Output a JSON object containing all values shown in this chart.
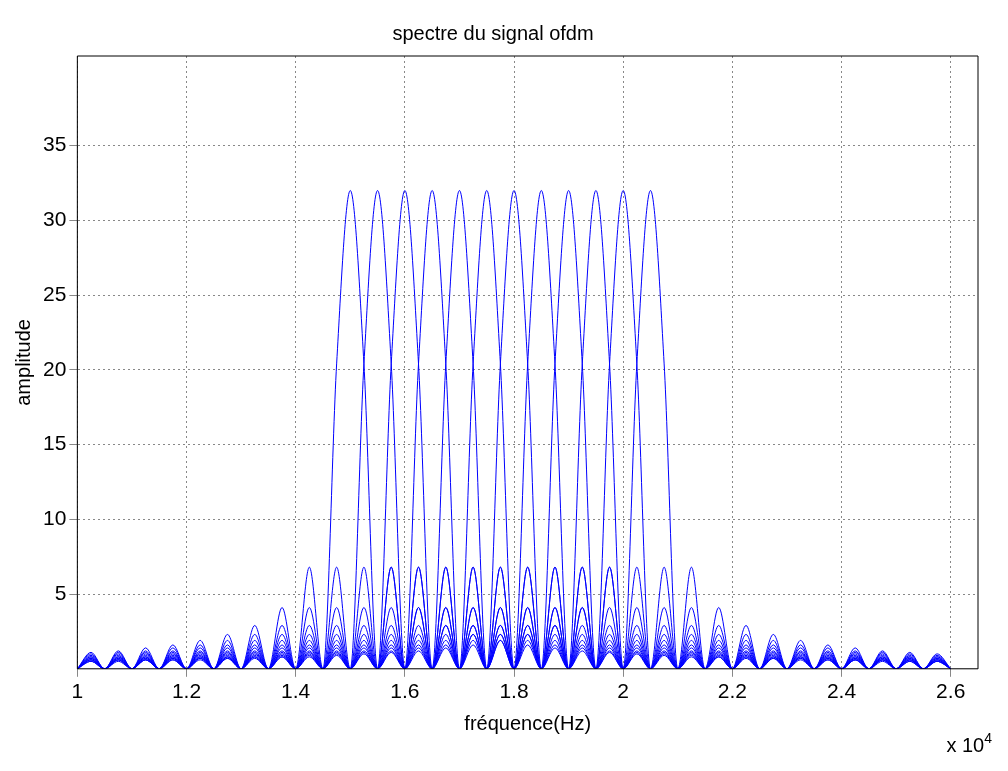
{
  "chart_data": {
    "type": "line",
    "title": "spectre du signal ofdm",
    "xlabel": "fréquence(Hz)",
    "ylabel": "amplitude",
    "annotations": [
      "x 10$^{4}$"
    ],
    "x": [
      1,
      1.025,
      1.05,
      1.075,
      1.1,
      1.125,
      1.15,
      1.175,
      1.2,
      1.225,
      1.25,
      1.275,
      1.3,
      1.325,
      1.35,
      1.375,
      1.4,
      1.425,
      1.45,
      1.475,
      1.5,
      1.525,
      1.55,
      1.575,
      1.6,
      1.625,
      1.65,
      1.675,
      1.7,
      1.725,
      1.75,
      1.775,
      1.8,
      1.825,
      1.85,
      1.875,
      1.9,
      1.925,
      1.95,
      1.975,
      2,
      2.025,
      2.05,
      2.075,
      2.1,
      2.125,
      2.15,
      2.175,
      2.2,
      2.225,
      2.25,
      2.275,
      2.3,
      2.325,
      2.35,
      2.375,
      2.4,
      2.425,
      2.45,
      2.475,
      2.5,
      2.525,
      2.55,
      2.575,
      2.6
    ],
    "xlim": [
      1,
      2.65
    ],
    "xticks": [
      1,
      1.2,
      1.4,
      1.6,
      1.8,
      2,
      2.2,
      2.4,
      2.6
    ],
    "ylim": [
      0,
      41
    ],
    "yticks": [
      5,
      10,
      15,
      20,
      25,
      30,
      35
    ],
    "grid": true,
    "series": [
      {
        "color": "#0000ff",
        "values": [
          0,
          1.1,
          0,
          1.2,
          0,
          1.4,
          0,
          1.6,
          0,
          1.9,
          0,
          2.3,
          0,
          2.9,
          0,
          4.1,
          0,
          6.8,
          0,
          20.4,
          32,
          20.4,
          0,
          6.8,
          0,
          4.1,
          0,
          2.9,
          0,
          2.3,
          0,
          1.9,
          0,
          1.6,
          0,
          1.4,
          0,
          1.2,
          0,
          1.1,
          0,
          1.0,
          0,
          0.9,
          0,
          0.8,
          0,
          0.8,
          0,
          0.7,
          0,
          0.7,
          0,
          0.6,
          0,
          0.6,
          0,
          0.6,
          0,
          0.5,
          0,
          0.5,
          0,
          0.5,
          0
        ]
      },
      {
        "color": "#0000ff",
        "values": [
          0,
          1.0,
          0,
          1.1,
          0,
          1.2,
          0,
          1.4,
          0,
          1.6,
          0,
          1.9,
          0,
          2.3,
          0,
          2.9,
          0,
          4.1,
          0,
          6.8,
          0,
          20.4,
          32,
          20.4,
          0,
          6.8,
          0,
          4.1,
          0,
          2.9,
          0,
          2.3,
          0,
          1.9,
          0,
          1.6,
          0,
          1.4,
          0,
          1.2,
          0,
          1.1,
          0,
          1.0,
          0,
          0.9,
          0,
          0.8,
          0,
          0.8,
          0,
          0.7,
          0,
          0.7,
          0,
          0.6,
          0,
          0.6,
          0,
          0.6,
          0,
          0.5,
          0,
          0.5,
          0
        ]
      },
      {
        "color": "#0000ff",
        "values": [
          0,
          0.9,
          0,
          1.0,
          0,
          1.1,
          0,
          1.2,
          0,
          1.4,
          0,
          1.6,
          0,
          1.9,
          0,
          2.3,
          0,
          2.9,
          0,
          4.1,
          0,
          6.8,
          0,
          20.4,
          32,
          20.4,
          0,
          6.8,
          0,
          4.1,
          0,
          2.9,
          0,
          2.3,
          0,
          1.9,
          0,
          1.6,
          0,
          1.4,
          0,
          1.2,
          0,
          1.1,
          0,
          1.0,
          0,
          0.9,
          0,
          0.8,
          0,
          0.8,
          0,
          0.7,
          0,
          0.7,
          0,
          0.6,
          0,
          0.6,
          0,
          0.6,
          0,
          0.5,
          0
        ]
      },
      {
        "color": "#0000ff",
        "values": [
          0,
          0.8,
          0,
          0.9,
          0,
          1.0,
          0,
          1.1,
          0,
          1.2,
          0,
          1.4,
          0,
          1.6,
          0,
          1.9,
          0,
          2.3,
          0,
          2.9,
          0,
          4.1,
          0,
          6.8,
          0,
          20.4,
          32,
          20.4,
          0,
          6.8,
          0,
          4.1,
          0,
          2.9,
          0,
          2.3,
          0,
          1.9,
          0,
          1.6,
          0,
          1.4,
          0,
          1.2,
          0,
          1.1,
          0,
          1.0,
          0,
          0.9,
          0,
          0.8,
          0,
          0.8,
          0,
          0.7,
          0,
          0.7,
          0,
          0.6,
          0,
          0.6,
          0,
          0.6,
          0
        ]
      },
      {
        "color": "#0000ff",
        "values": [
          0,
          0.8,
          0,
          0.8,
          0,
          0.9,
          0,
          1.0,
          0,
          1.1,
          0,
          1.2,
          0,
          1.4,
          0,
          1.6,
          0,
          1.9,
          0,
          2.3,
          0,
          2.9,
          0,
          4.1,
          0,
          6.8,
          0,
          20.4,
          32,
          20.4,
          0,
          6.8,
          0,
          4.1,
          0,
          2.9,
          0,
          2.3,
          0,
          1.9,
          0,
          1.6,
          0,
          1.4,
          0,
          1.2,
          0,
          1.1,
          0,
          1.0,
          0,
          0.9,
          0,
          0.8,
          0,
          0.8,
          0,
          0.7,
          0,
          0.7,
          0,
          0.6,
          0,
          0.6,
          0
        ]
      },
      {
        "color": "#0000ff",
        "values": [
          0,
          0.7,
          0,
          0.8,
          0,
          0.8,
          0,
          0.9,
          0,
          1.0,
          0,
          1.1,
          0,
          1.2,
          0,
          1.4,
          0,
          1.6,
          0,
          1.9,
          0,
          2.3,
          0,
          2.9,
          0,
          4.1,
          0,
          6.8,
          0,
          20.4,
          32,
          20.4,
          0,
          6.8,
          0,
          4.1,
          0,
          2.9,
          0,
          2.3,
          0,
          1.9,
          0,
          1.6,
          0,
          1.4,
          0,
          1.2,
          0,
          1.1,
          0,
          1.0,
          0,
          0.9,
          0,
          0.8,
          0,
          0.8,
          0,
          0.7,
          0,
          0.7,
          0,
          0.6,
          0
        ]
      },
      {
        "color": "#0000ff",
        "values": [
          0,
          0.7,
          0,
          0.7,
          0,
          0.8,
          0,
          0.8,
          0,
          0.9,
          0,
          1.0,
          0,
          1.1,
          0,
          1.2,
          0,
          1.4,
          0,
          1.6,
          0,
          1.9,
          0,
          2.3,
          0,
          2.9,
          0,
          4.1,
          0,
          6.8,
          0,
          20.4,
          32,
          20.4,
          0,
          6.8,
          0,
          4.1,
          0,
          2.9,
          0,
          2.3,
          0,
          1.9,
          0,
          1.6,
          0,
          1.4,
          0,
          1.2,
          0,
          1.1,
          0,
          1.0,
          0,
          0.9,
          0,
          0.8,
          0,
          0.8,
          0,
          0.7,
          0,
          0.7,
          0
        ]
      },
      {
        "color": "#0000ff",
        "values": [
          0,
          0.6,
          0,
          0.7,
          0,
          0.7,
          0,
          0.8,
          0,
          0.8,
          0,
          0.9,
          0,
          1.0,
          0,
          1.1,
          0,
          1.2,
          0,
          1.4,
          0,
          1.6,
          0,
          1.9,
          0,
          2.3,
          0,
          2.9,
          0,
          4.1,
          0,
          6.8,
          0,
          20.4,
          32,
          20.4,
          0,
          6.8,
          0,
          4.1,
          0,
          2.9,
          0,
          2.3,
          0,
          1.9,
          0,
          1.6,
          0,
          1.4,
          0,
          1.2,
          0,
          1.1,
          0,
          1.0,
          0,
          0.9,
          0,
          0.8,
          0,
          0.8,
          0,
          0.7,
          0
        ]
      },
      {
        "color": "#0000ff",
        "values": [
          0,
          0.6,
          0,
          0.6,
          0,
          0.7,
          0,
          0.7,
          0,
          0.8,
          0,
          0.8,
          0,
          0.9,
          0,
          1.0,
          0,
          1.1,
          0,
          1.2,
          0,
          1.4,
          0,
          1.6,
          0,
          1.9,
          0,
          2.3,
          0,
          2.9,
          0,
          4.1,
          0,
          6.8,
          0,
          20.4,
          32,
          20.4,
          0,
          6.8,
          0,
          4.1,
          0,
          2.9,
          0,
          2.3,
          0,
          1.9,
          0,
          1.6,
          0,
          1.4,
          0,
          1.2,
          0,
          1.1,
          0,
          1.0,
          0,
          0.9,
          0,
          0.8,
          0,
          0.8,
          0
        ]
      },
      {
        "color": "#0000ff",
        "values": [
          0,
          0.6,
          0,
          0.6,
          0,
          0.6,
          0,
          0.7,
          0,
          0.7,
          0,
          0.8,
          0,
          0.8,
          0,
          0.9,
          0,
          1.0,
          0,
          1.1,
          0,
          1.2,
          0,
          1.4,
          0,
          1.6,
          0,
          1.9,
          0,
          2.3,
          0,
          2.9,
          0,
          4.1,
          0,
          6.8,
          0,
          20.4,
          32,
          20.4,
          0,
          6.8,
          0,
          4.1,
          0,
          2.9,
          0,
          2.3,
          0,
          1.9,
          0,
          1.6,
          0,
          1.4,
          0,
          1.2,
          0,
          1.1,
          0,
          1.0,
          0,
          0.9,
          0,
          0.8,
          0
        ]
      },
      {
        "color": "#0000ff",
        "values": [
          0,
          0.5,
          0,
          0.6,
          0,
          0.6,
          0,
          0.6,
          0,
          0.7,
          0,
          0.7,
          0,
          0.8,
          0,
          0.8,
          0,
          0.9,
          0,
          1.0,
          0,
          1.1,
          0,
          1.2,
          0,
          1.4,
          0,
          1.6,
          0,
          1.9,
          0,
          2.3,
          0,
          2.9,
          0,
          4.1,
          0,
          6.8,
          0,
          20.4,
          32,
          20.4,
          0,
          6.8,
          0,
          4.1,
          0,
          2.9,
          0,
          2.3,
          0,
          1.9,
          0,
          1.6,
          0,
          1.4,
          0,
          1.2,
          0,
          1.1,
          0,
          1.0,
          0,
          0.9,
          0
        ]
      },
      {
        "color": "#0000ff",
        "values": [
          0,
          0.5,
          0,
          0.5,
          0,
          0.6,
          0,
          0.6,
          0,
          0.6,
          0,
          0.7,
          0,
          0.7,
          0,
          0.8,
          0,
          0.8,
          0,
          0.9,
          0,
          1.0,
          0,
          1.1,
          0,
          1.2,
          0,
          1.4,
          0,
          1.6,
          0,
          1.9,
          0,
          2.3,
          0,
          2.9,
          0,
          4.1,
          0,
          6.8,
          0,
          20.4,
          32,
          20.4,
          0,
          6.8,
          0,
          4.1,
          0,
          2.9,
          0,
          2.3,
          0,
          1.9,
          0,
          1.6,
          0,
          1.4,
          0,
          1.2,
          0,
          1.1,
          0,
          1.0,
          0
        ]
      }
    ]
  }
}
